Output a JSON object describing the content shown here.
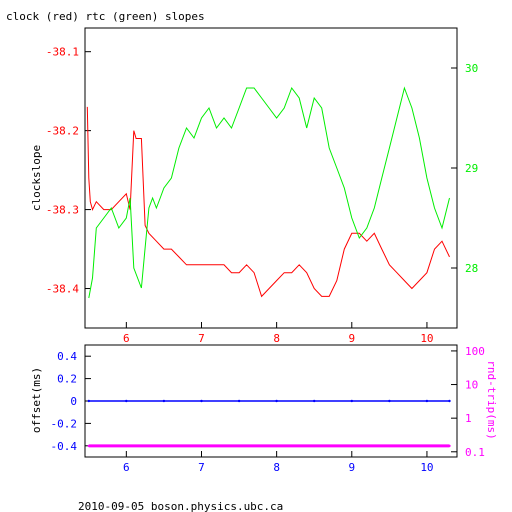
{
  "header": {
    "title": "clock (red) rtc (green) slopes"
  },
  "footer": {
    "caption": "2010-09-05 boson.physics.ubc.ca"
  },
  "colors": {
    "clock": "#ff0000",
    "rtc": "#00ee00",
    "offset": "#0000ff",
    "roundtrip": "#ff00ff",
    "axis": "#000000"
  },
  "chart_data": [
    {
      "type": "line",
      "title": "clock (red) rtc (green) slopes",
      "ylabel": "clockslope",
      "xlim": [
        5.45,
        10.4
      ],
      "ylim_left": [
        -38.45,
        -38.07
      ],
      "ylim_right": [
        27.4,
        30.4
      ],
      "x_ticks": [
        6,
        7,
        8,
        9,
        10
      ],
      "y_ticks_left": [
        -38.1,
        -38.2,
        -38.3,
        -38.4
      ],
      "y_ticks_right": [
        28,
        29,
        30
      ],
      "series": [
        {
          "name": "clock",
          "axis": "left",
          "x": [
            5.48,
            5.5,
            5.52,
            5.55,
            5.6,
            5.7,
            5.8,
            5.9,
            6.0,
            6.05,
            6.1,
            6.13,
            6.2,
            6.25,
            6.3,
            6.4,
            6.5,
            6.6,
            6.7,
            6.8,
            6.9,
            7.0,
            7.1,
            7.2,
            7.3,
            7.4,
            7.5,
            7.6,
            7.7,
            7.8,
            7.9,
            8.0,
            8.1,
            8.2,
            8.3,
            8.4,
            8.5,
            8.6,
            8.7,
            8.8,
            8.9,
            9.0,
            9.1,
            9.2,
            9.3,
            9.4,
            9.5,
            9.6,
            9.7,
            9.8,
            9.9,
            10.0,
            10.1,
            10.2,
            10.3
          ],
          "y": [
            -38.17,
            -38.26,
            -38.29,
            -38.3,
            -38.29,
            -38.3,
            -38.3,
            -38.29,
            -38.28,
            -38.3,
            -38.2,
            -38.21,
            -38.21,
            -38.32,
            -38.33,
            -38.34,
            -38.35,
            -38.35,
            -38.36,
            -38.37,
            -38.37,
            -38.37,
            -38.37,
            -38.37,
            -38.37,
            -38.38,
            -38.38,
            -38.37,
            -38.38,
            -38.41,
            -38.4,
            -38.39,
            -38.38,
            -38.38,
            -38.37,
            -38.38,
            -38.4,
            -38.41,
            -38.41,
            -38.39,
            -38.35,
            -38.33,
            -38.33,
            -38.34,
            -38.33,
            -38.35,
            -38.37,
            -38.38,
            -38.39,
            -38.4,
            -38.39,
            -38.38,
            -38.35,
            -38.34,
            -38.36
          ]
        },
        {
          "name": "rtc",
          "axis": "right",
          "x": [
            5.5,
            5.55,
            5.6,
            5.7,
            5.8,
            5.9,
            6.0,
            6.05,
            6.1,
            6.15,
            6.2,
            6.25,
            6.3,
            6.35,
            6.4,
            6.45,
            6.5,
            6.6,
            6.7,
            6.8,
            6.9,
            7.0,
            7.1,
            7.2,
            7.3,
            7.4,
            7.5,
            7.6,
            7.7,
            7.8,
            7.9,
            8.0,
            8.1,
            8.2,
            8.3,
            8.4,
            8.5,
            8.6,
            8.7,
            8.8,
            8.9,
            9.0,
            9.1,
            9.2,
            9.3,
            9.4,
            9.5,
            9.6,
            9.7,
            9.8,
            9.9,
            10.0,
            10.1,
            10.2,
            10.3
          ],
          "y": [
            27.7,
            27.9,
            28.4,
            28.5,
            28.6,
            28.4,
            28.5,
            28.7,
            28.0,
            27.9,
            27.8,
            28.2,
            28.6,
            28.7,
            28.6,
            28.7,
            28.8,
            28.9,
            29.2,
            29.4,
            29.3,
            29.5,
            29.6,
            29.4,
            29.5,
            29.4,
            29.6,
            29.8,
            29.8,
            29.7,
            29.6,
            29.5,
            29.6,
            29.8,
            29.7,
            29.4,
            29.7,
            29.6,
            29.2,
            29.0,
            28.8,
            28.5,
            28.3,
            28.4,
            28.6,
            28.9,
            29.2,
            29.5,
            29.8,
            29.6,
            29.3,
            28.9,
            28.6,
            28.4,
            28.7
          ]
        }
      ]
    },
    {
      "type": "scatter",
      "xlim": [
        5.45,
        10.4
      ],
      "ylabel": "offset(ms)",
      "ylabel_right": "rnd-trip(ms)",
      "ylim_left": [
        -0.5,
        0.5
      ],
      "y_ticks_left": [
        0.4,
        0.2,
        0,
        -0.2,
        -0.4
      ],
      "y_ticks_right": [
        100,
        10,
        1,
        0.1
      ],
      "y_right_scale": "log",
      "ylim_right": [
        0.07,
        150
      ],
      "x_ticks": [
        6,
        7,
        8,
        9,
        10
      ],
      "series": [
        {
          "name": "offset",
          "axis": "left",
          "x": [
            5.5,
            6.0,
            6.5,
            7.0,
            7.5,
            8.0,
            8.5,
            9.0,
            9.5,
            10.0,
            10.3
          ],
          "y": [
            0,
            0,
            0,
            0,
            0,
            0,
            0,
            0,
            0,
            0,
            0
          ]
        },
        {
          "name": "roundtrip",
          "axis": "right",
          "x": [
            5.5,
            6.0,
            6.5,
            7.0,
            7.5,
            8.0,
            8.5,
            9.0,
            9.5,
            10.0,
            10.3
          ],
          "y": [
            0.15,
            0.15,
            0.15,
            0.15,
            0.15,
            0.15,
            0.15,
            0.15,
            0.15,
            0.15,
            0.15
          ]
        }
      ]
    }
  ]
}
